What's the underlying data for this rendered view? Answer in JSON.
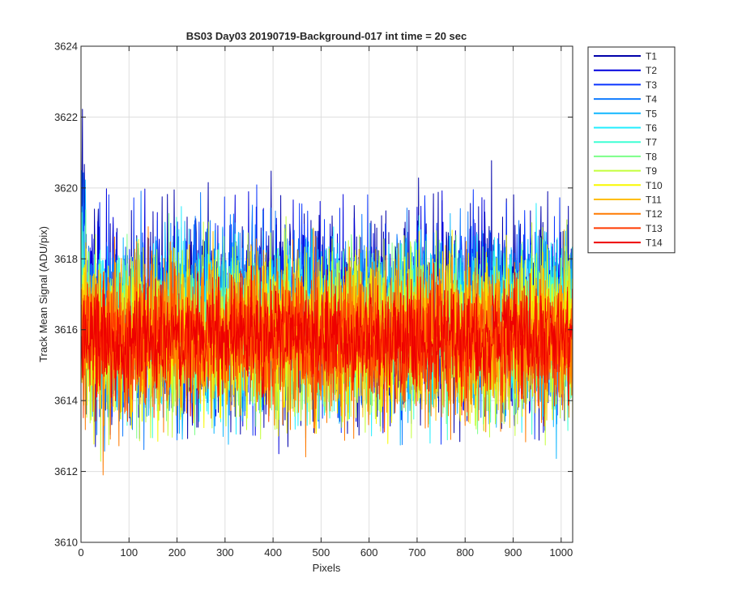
{
  "chart_data": {
    "type": "line",
    "title": "BS03 Day03 20190719-Background-017 int time = 20 sec",
    "xlabel": "Pixels",
    "ylabel": "Track Mean Signal (ADU/pix)",
    "xlim": [
      0,
      1024
    ],
    "ylim": [
      3610,
      3624
    ],
    "xticks": [
      "0",
      "100",
      "200",
      "300",
      "400",
      "500",
      "600",
      "700",
      "800",
      "900",
      "1000"
    ],
    "yticks": [
      "3610",
      "3612",
      "3614",
      "3616",
      "3618",
      "3620",
      "3622",
      "3624"
    ],
    "grid": true,
    "legend_position": "outside-right",
    "x_range": [
      1,
      1024
    ],
    "series": [
      {
        "name": "T1",
        "color": "#0000aa",
        "mean": 3616.6,
        "min": 3612.7,
        "max": 3622.3
      },
      {
        "name": "T2",
        "color": "#0000dd",
        "mean": 3616.5,
        "min": 3612.5,
        "max": 3621.1
      },
      {
        "name": "T3",
        "color": "#0a35ff",
        "mean": 3616.4,
        "min": 3612.3,
        "max": 3620.7
      },
      {
        "name": "T4",
        "color": "#0f7bff",
        "mean": 3616.3,
        "min": 3611.4,
        "max": 3620.5
      },
      {
        "name": "T5",
        "color": "#11b7ff",
        "mean": 3616.2,
        "min": 3612.2,
        "max": 3620.3
      },
      {
        "name": "T6",
        "color": "#22eeff",
        "mean": 3616.1,
        "min": 3612.8,
        "max": 3620.2
      },
      {
        "name": "T7",
        "color": "#3fffd4",
        "mean": 3616.0,
        "min": 3612.8,
        "max": 3620.0
      },
      {
        "name": "T8",
        "color": "#7bff88",
        "mean": 3615.9,
        "min": 3612.6,
        "max": 3619.8
      },
      {
        "name": "T9",
        "color": "#c4ff3c",
        "mean": 3615.8,
        "min": 3611.2,
        "max": 3619.6
      },
      {
        "name": "T10",
        "color": "#f8f800",
        "mean": 3615.8,
        "min": 3612.0,
        "max": 3619.4
      },
      {
        "name": "T11",
        "color": "#ffbe00",
        "mean": 3615.8,
        "min": 3612.4,
        "max": 3619.2
      },
      {
        "name": "T12",
        "color": "#ff7a00",
        "mean": 3615.7,
        "min": 3611.4,
        "max": 3619.0
      },
      {
        "name": "T13",
        "color": "#ff3a00",
        "mean": 3615.7,
        "min": 3613.0,
        "max": 3618.6
      },
      {
        "name": "T14",
        "color": "#ee0000",
        "mean": 3615.8,
        "min": 3613.4,
        "max": 3618.2
      }
    ]
  }
}
